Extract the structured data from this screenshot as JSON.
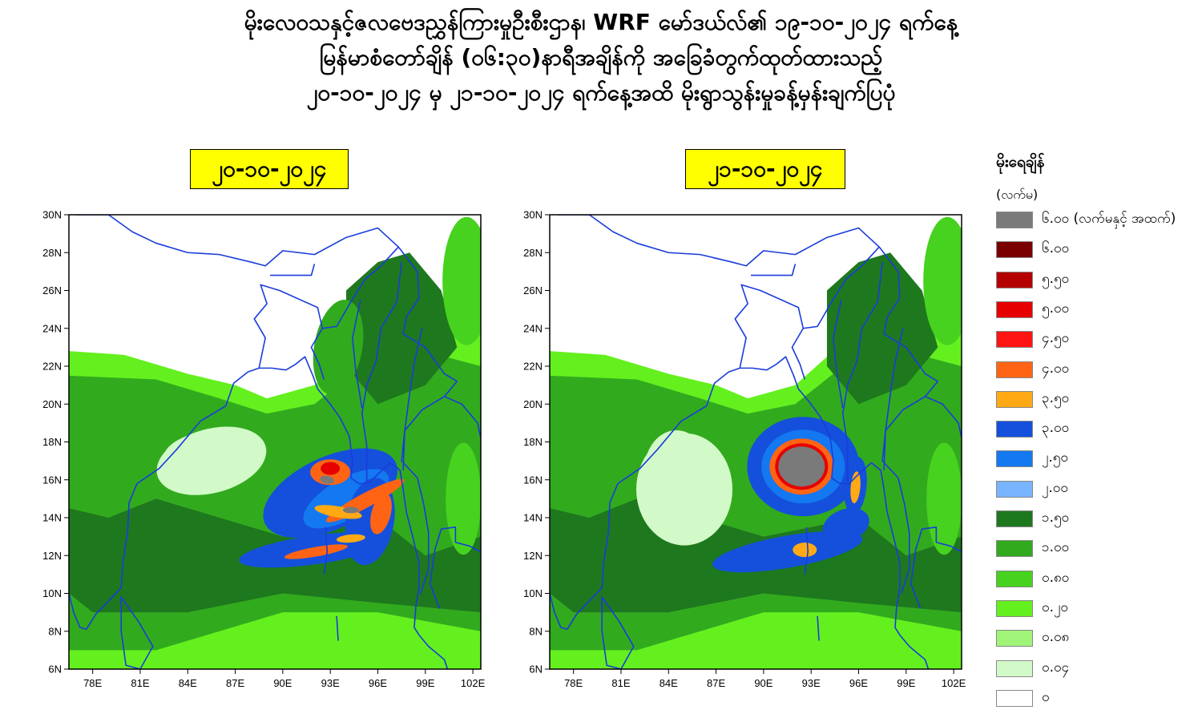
{
  "title": {
    "line1": "မိုးလေဝသနှင့်ဇလဗေဒညွှန်ကြားမှုဦးစီးဌာန၊ WRF မော်ဒယ်လ်၏  ၁၉-၁၀-၂၀၂၄ ရက်နေ့",
    "line2": "မြန်မာစံတော်ချိန် (၀၆:၃၀)နာရီအချိန်ကို အခြေခံတွက်ထုတ်ထားသည့်",
    "line3": "၂၀-၁၀-၂၀၂၄  မှ ၂၁-၁၀-၂၀၂၄ ရက်နေ့အထိ မိုးရွာသွန်းမှုခန့်မှန်းချက်ပြပုံ"
  },
  "maps": [
    {
      "date": "၂၀-၁၀-၂၀၂၄",
      "heavy_areas": [
        {
          "lon": 93.0,
          "lat": 16.3,
          "level": "6.00+"
        },
        {
          "lon": 94.5,
          "lat": 14.6,
          "level": "5.00"
        },
        {
          "lon": 92.0,
          "lat": 12.1,
          "level": "3.50"
        }
      ]
    },
    {
      "date": "၂၁-၁၀-၂၀၂၄",
      "heavy_areas": [
        {
          "lon": 92.3,
          "lat": 16.6,
          "level": "6.00+"
        },
        {
          "lon": 95.8,
          "lat": 15.6,
          "level": "3.50"
        },
        {
          "lon": 92.8,
          "lat": 12.2,
          "level": "3.50"
        }
      ]
    }
  ],
  "axes": {
    "x_ticks": [
      "78E",
      "81E",
      "84E",
      "87E",
      "90E",
      "93E",
      "96E",
      "99E",
      "102E"
    ],
    "y_ticks": [
      "30N",
      "28N",
      "26N",
      "24N",
      "22N",
      "20N",
      "18N",
      "16N",
      "14N",
      "12N",
      "10N",
      "8N",
      "6N"
    ],
    "lon_range": [
      76.5,
      102.5
    ],
    "lat_range": [
      6,
      30
    ]
  },
  "legend": {
    "title": "မိုးရေချိန်",
    "unit": "(လက်မ)",
    "items": [
      {
        "label": "၆.၀၀ (လက်မနှင့် အထက်)",
        "color": "#7a7a7a"
      },
      {
        "label": "၆.၀၀",
        "color": "#7a0000"
      },
      {
        "label": "၅.၅၀",
        "color": "#b40000"
      },
      {
        "label": "၅.၀၀",
        "color": "#e60000"
      },
      {
        "label": "၄.၅၀",
        "color": "#ff1414"
      },
      {
        "label": "၄.၀၀",
        "color": "#ff6414"
      },
      {
        "label": "၃.၅၀",
        "color": "#ffaa14"
      },
      {
        "label": "၃.၀၀",
        "color": "#1450dc"
      },
      {
        "label": "၂.၅၀",
        "color": "#1478f0"
      },
      {
        "label": "၂.၀၀",
        "color": "#78b4ff"
      },
      {
        "label": "၁.၅၀",
        "color": "#1e781e"
      },
      {
        "label": "၁.၀၀",
        "color": "#32aa1e"
      },
      {
        "label": "၀.၈၀",
        "color": "#46d21e"
      },
      {
        "label": "၀.၂၀",
        "color": "#64f01e"
      },
      {
        "label": "၀.၀၈",
        "color": "#a0f578"
      },
      {
        "label": "၀.၀၄",
        "color": "#d2fac8"
      },
      {
        "label": "၀",
        "color": "#ffffff"
      }
    ]
  }
}
